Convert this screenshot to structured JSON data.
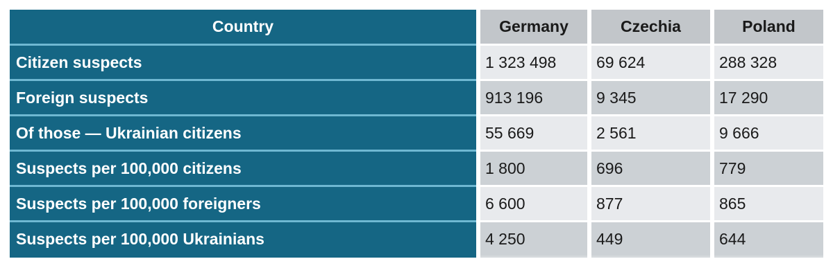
{
  "table": {
    "header": {
      "label": "Country",
      "columns": [
        "Germany",
        "Czechia",
        "Poland"
      ]
    },
    "rows": [
      {
        "label": "Citizen suspects",
        "values": [
          "1 323 498",
          "69 624",
          "288 328"
        ]
      },
      {
        "label": "Foreign suspects",
        "values": [
          "913 196",
          "9 345",
          "17 290"
        ]
      },
      {
        "label": "Of those — Ukrainian citizens",
        "values": [
          "55 669",
          "2 561",
          "9 666"
        ]
      },
      {
        "label": "Suspects per 100,000 citizens",
        "values": [
          "1 800",
          "696",
          "779"
        ]
      },
      {
        "label": "Suspects per 100,000 foreigners",
        "values": [
          "6 600",
          "877",
          "865"
        ]
      },
      {
        "label": "Suspects per 100,000 Ukrainians",
        "values": [
          "4 250",
          "449",
          "644"
        ]
      }
    ],
    "colors": {
      "label_background": "#156684",
      "label_row_separator": "#6fb8d2",
      "column_header_background": "#c2c6ca",
      "band_light": "#e8eaed",
      "band_dark": "#ccd1d5",
      "label_text": "#ffffff",
      "value_text": "#1a1a1a"
    }
  },
  "chart_data": {
    "type": "table",
    "columns": [
      "Country",
      "Germany",
      "Czechia",
      "Poland"
    ],
    "row_labels": [
      "Citizen suspects",
      "Foreign suspects",
      "Of those — Ukrainian citizens",
      "Suspects per 100,000 citizens",
      "Suspects per 100,000 foreigners",
      "Suspects per 100,000 Ukrainians"
    ],
    "series": [
      {
        "name": "Germany",
        "values": [
          1323498,
          913196,
          55669,
          1800,
          6600,
          4250
        ]
      },
      {
        "name": "Czechia",
        "values": [
          69624,
          9345,
          2561,
          696,
          877,
          449
        ]
      },
      {
        "name": "Poland",
        "values": [
          288328,
          17290,
          9666,
          779,
          865,
          644
        ]
      }
    ],
    "number_format": "space thousands separator"
  }
}
